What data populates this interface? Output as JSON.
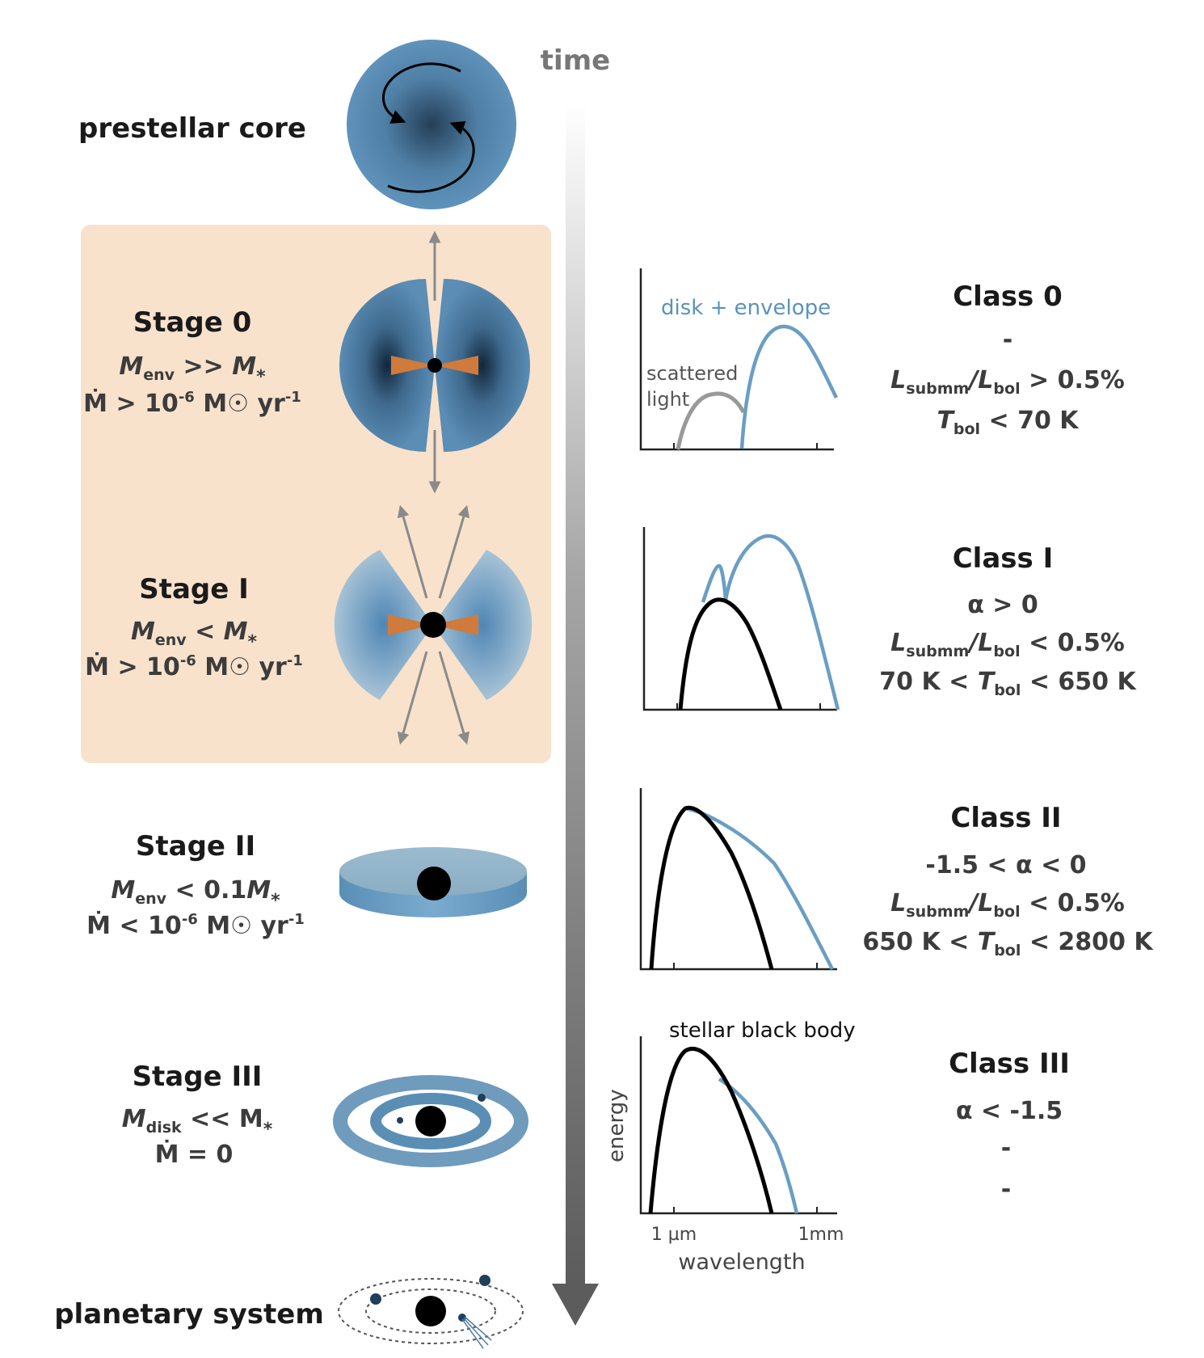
{
  "time_label": "time",
  "stages": [
    {
      "name": "prestellar core"
    },
    {
      "name": "Stage 0",
      "line1": {
        "lhs": "M",
        "lhs_sub": "env",
        "op": " >> ",
        "rhs": "M",
        "rhs_sub": "*"
      },
      "line2": {
        "text": "Ṁ > 10",
        "exp": "-6",
        "unit": " M☉ yr",
        "unit_exp": "-1"
      }
    },
    {
      "name": "Stage I",
      "line1": {
        "lhs": "M",
        "lhs_sub": "env",
        "op": " < ",
        "rhs": "M",
        "rhs_sub": "*"
      },
      "line2": {
        "text": "Ṁ > 10",
        "exp": "-6",
        "unit": " M☉ yr",
        "unit_exp": "-1"
      }
    },
    {
      "name": "Stage II",
      "line1": {
        "lhs": "M",
        "lhs_sub": "env",
        "op": " < 0.1",
        "rhs": "M",
        "rhs_sub": "*"
      },
      "line2": {
        "text": "Ṁ < 10",
        "exp": "-6",
        "unit": " M☉ yr",
        "unit_exp": "-1"
      }
    },
    {
      "name": "Stage III",
      "line1": {
        "lhs": "M",
        "lhs_sub": "disk",
        "op": " << M",
        "rhs": "",
        "rhs_sub": "*"
      },
      "line2": {
        "text": "Ṁ = 0",
        "exp": "",
        "unit": "",
        "unit_exp": ""
      }
    },
    {
      "name": "planetary system"
    }
  ],
  "classes": [
    {
      "name": "Class 0",
      "l1": "-",
      "l2": {
        "a": "L",
        "a_sub": "submm",
        "b": "/L",
        "b_sub": "bol",
        "c": " > 0.5%"
      },
      "l3": {
        "a": "T",
        "a_sub": "bol",
        "c": " < 70 K"
      }
    },
    {
      "name": "Class I",
      "l1": "α > 0",
      "l2": {
        "a": "L",
        "a_sub": "submm",
        "b": "/L",
        "b_sub": "bol",
        "c": " < 0.5%"
      },
      "l3": {
        "pre": "70 K < ",
        "a": "T",
        "a_sub": "bol",
        "c": " < 650 K"
      }
    },
    {
      "name": "Class II",
      "l1": "-1.5 < α < 0",
      "l2": {
        "a": "L",
        "a_sub": "submm",
        "b": "/L",
        "b_sub": "bol",
        "c": " < 0.5%"
      },
      "l3": {
        "pre": "650 K < ",
        "a": "T",
        "a_sub": "bol",
        "c": " < 2800 K"
      }
    },
    {
      "name": "Class III",
      "l1": "α < -1.5",
      "l2_plain": "-",
      "l3_plain": "-"
    }
  ],
  "sed_labels": {
    "disk_envelope": "disk + envelope",
    "scattered_1": "scattered",
    "scattered_2": "light",
    "stellar_black_body": "stellar black body",
    "y_axis": "energy",
    "x_axis": "wavelength",
    "tick_1": "1 µm",
    "tick_2": "1mm"
  },
  "colors": {
    "blue": "#5a8eb5",
    "sed_blue": "#6a9ec3",
    "dark_blue": "#1f3f5a",
    "orange": "#d07a3c",
    "panel": "#f8e2cc",
    "grey": "#8c8c8c"
  }
}
